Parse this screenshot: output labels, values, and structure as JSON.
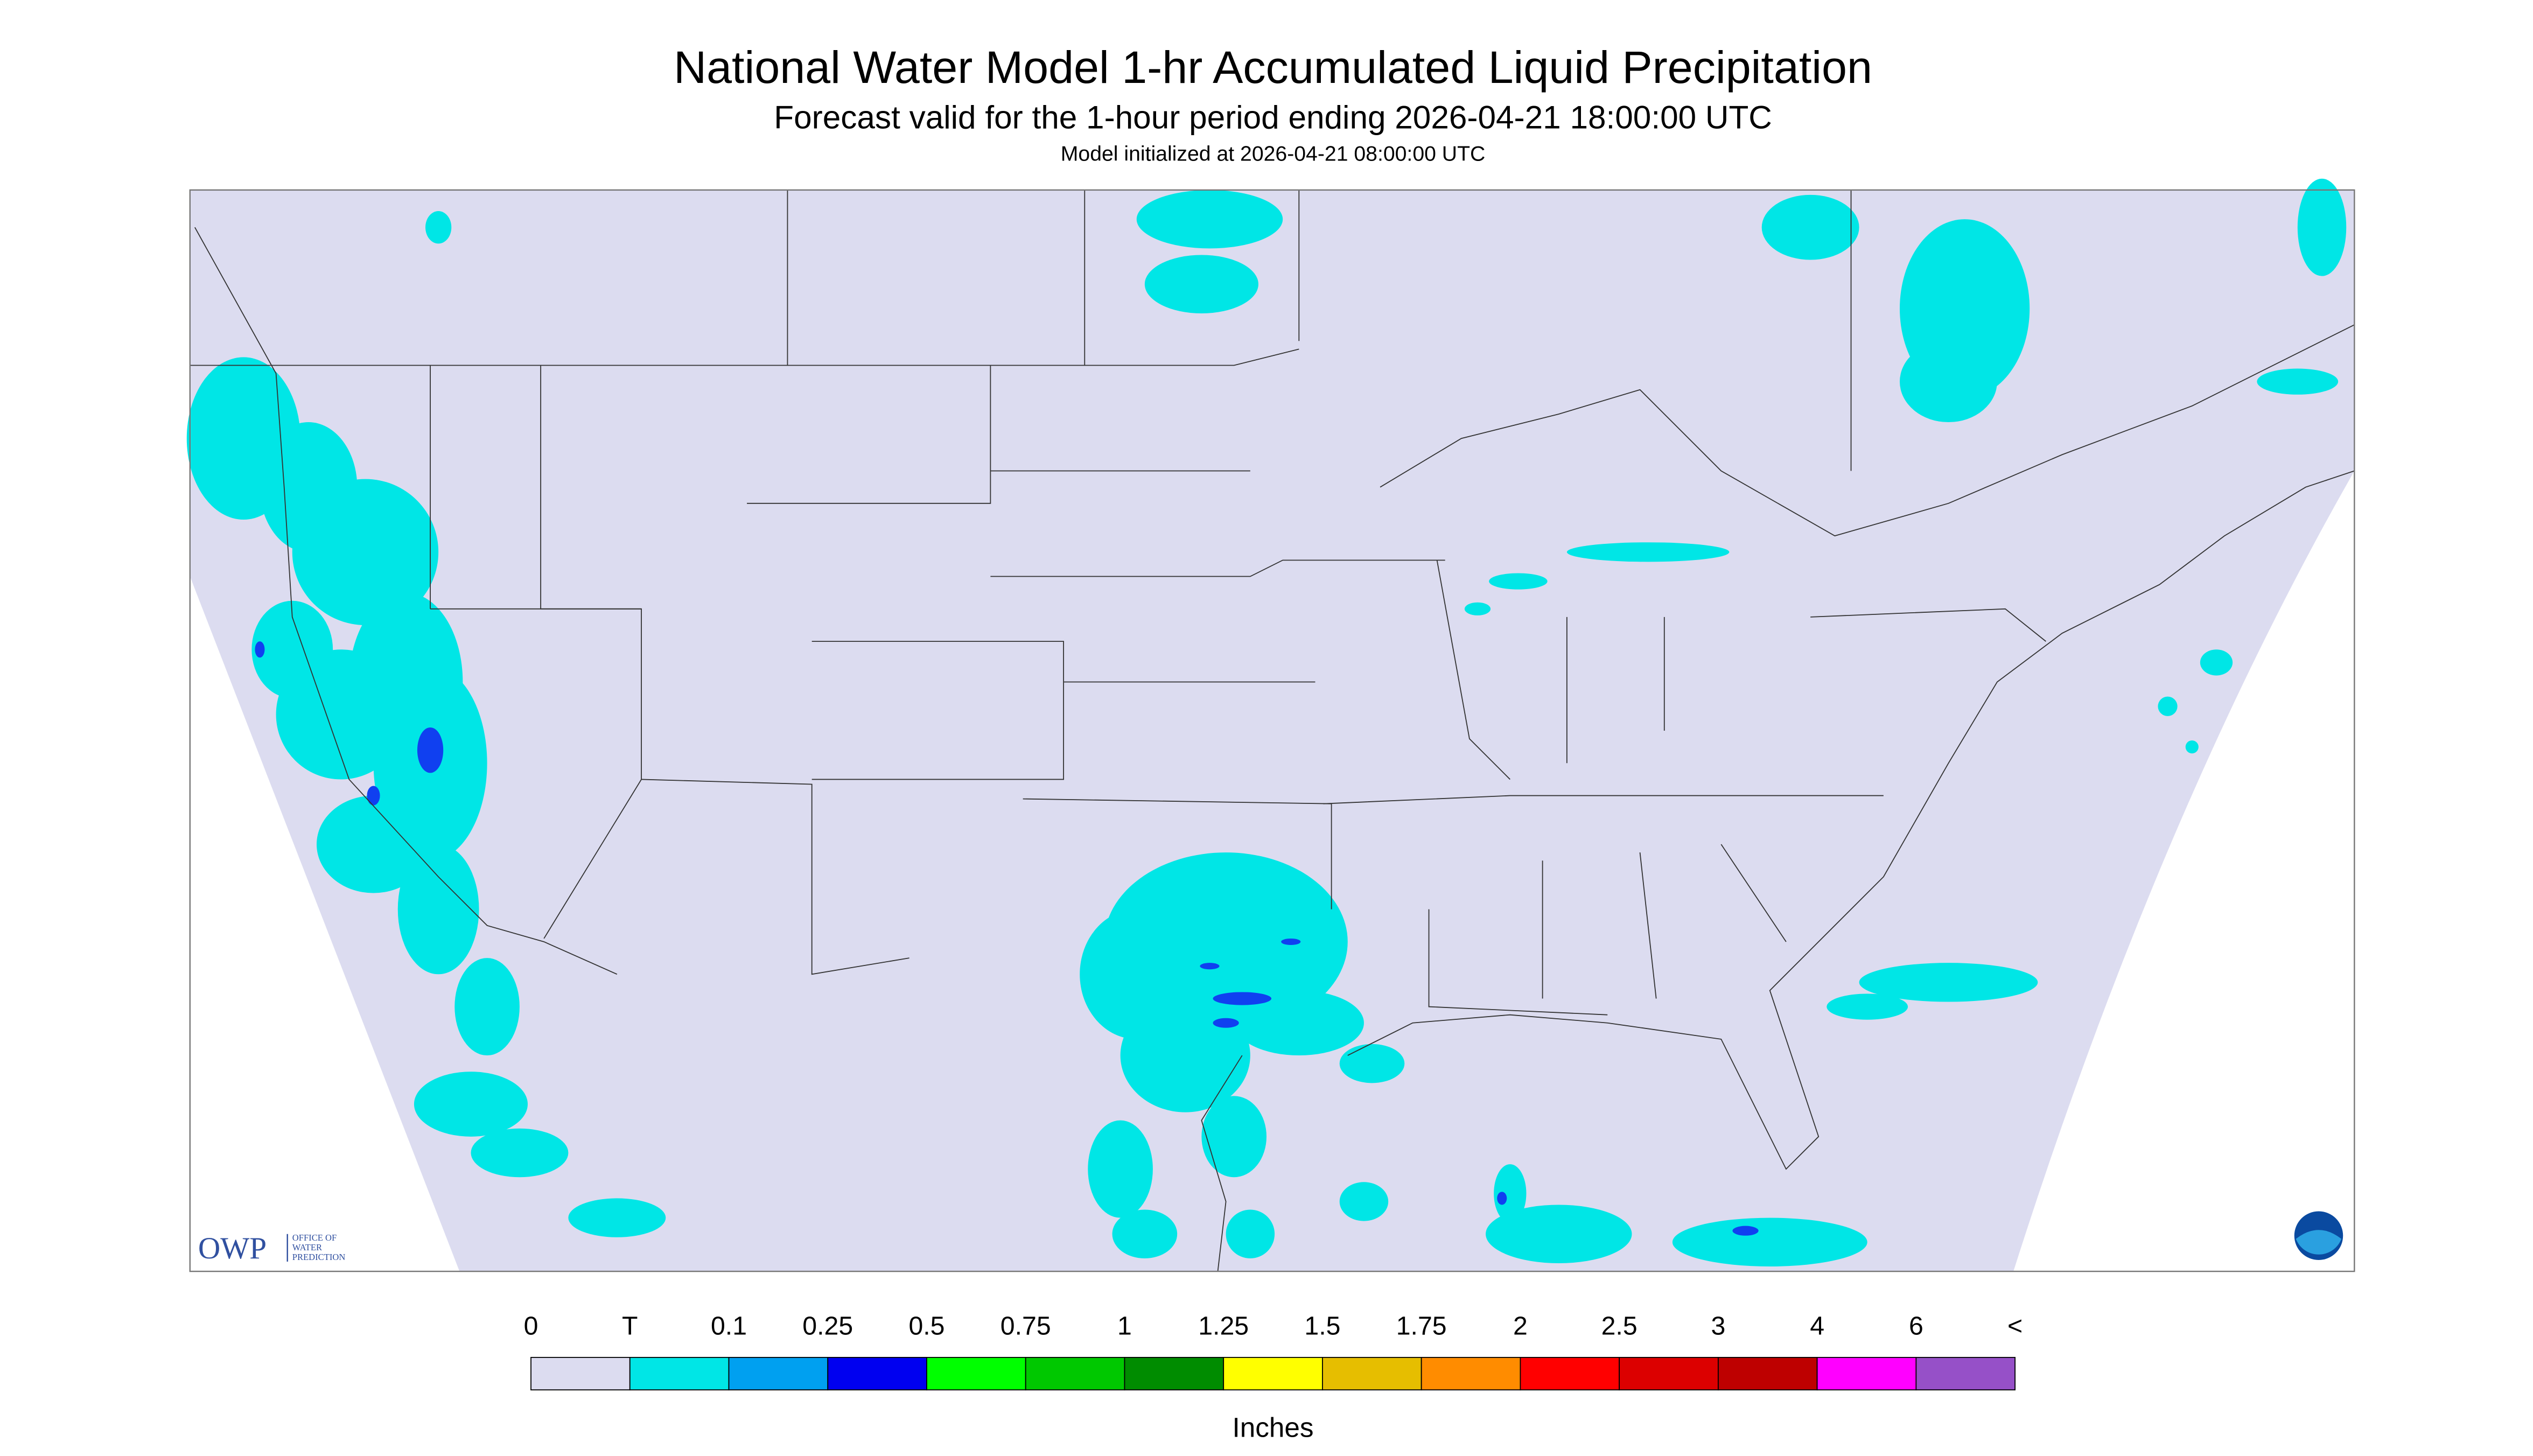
{
  "header": {
    "title": "National Water Model 1-hr Accumulated Liquid Precipitation",
    "subtitle": "Forecast valid for the 1-hour period ending 2026-04-21 18:00:00 UTC",
    "note": "Model initialized at 2026-04-21 08:00:00 UTC"
  },
  "logo": {
    "acronym": "OWP",
    "line1": "OFFICE OF",
    "line2": "WATER",
    "line3": "PREDICTION"
  },
  "legend": {
    "labels": [
      "0",
      "T",
      "0.1",
      "0.25",
      "0.5",
      "0.75",
      "1",
      "1.25",
      "1.5",
      "1.75",
      "2",
      "2.5",
      "3",
      "4",
      "6",
      "<"
    ],
    "colors": [
      "#dcdcf0",
      "#00e6e6",
      "#00a0f0",
      "#0000f0",
      "#00ff00",
      "#00c800",
      "#008c00",
      "#ffff00",
      "#e6be00",
      "#ff8c00",
      "#ff0000",
      "#dc0000",
      "#be0000",
      "#ff00ff",
      "#9650c8"
    ],
    "unit": "Inches"
  }
}
